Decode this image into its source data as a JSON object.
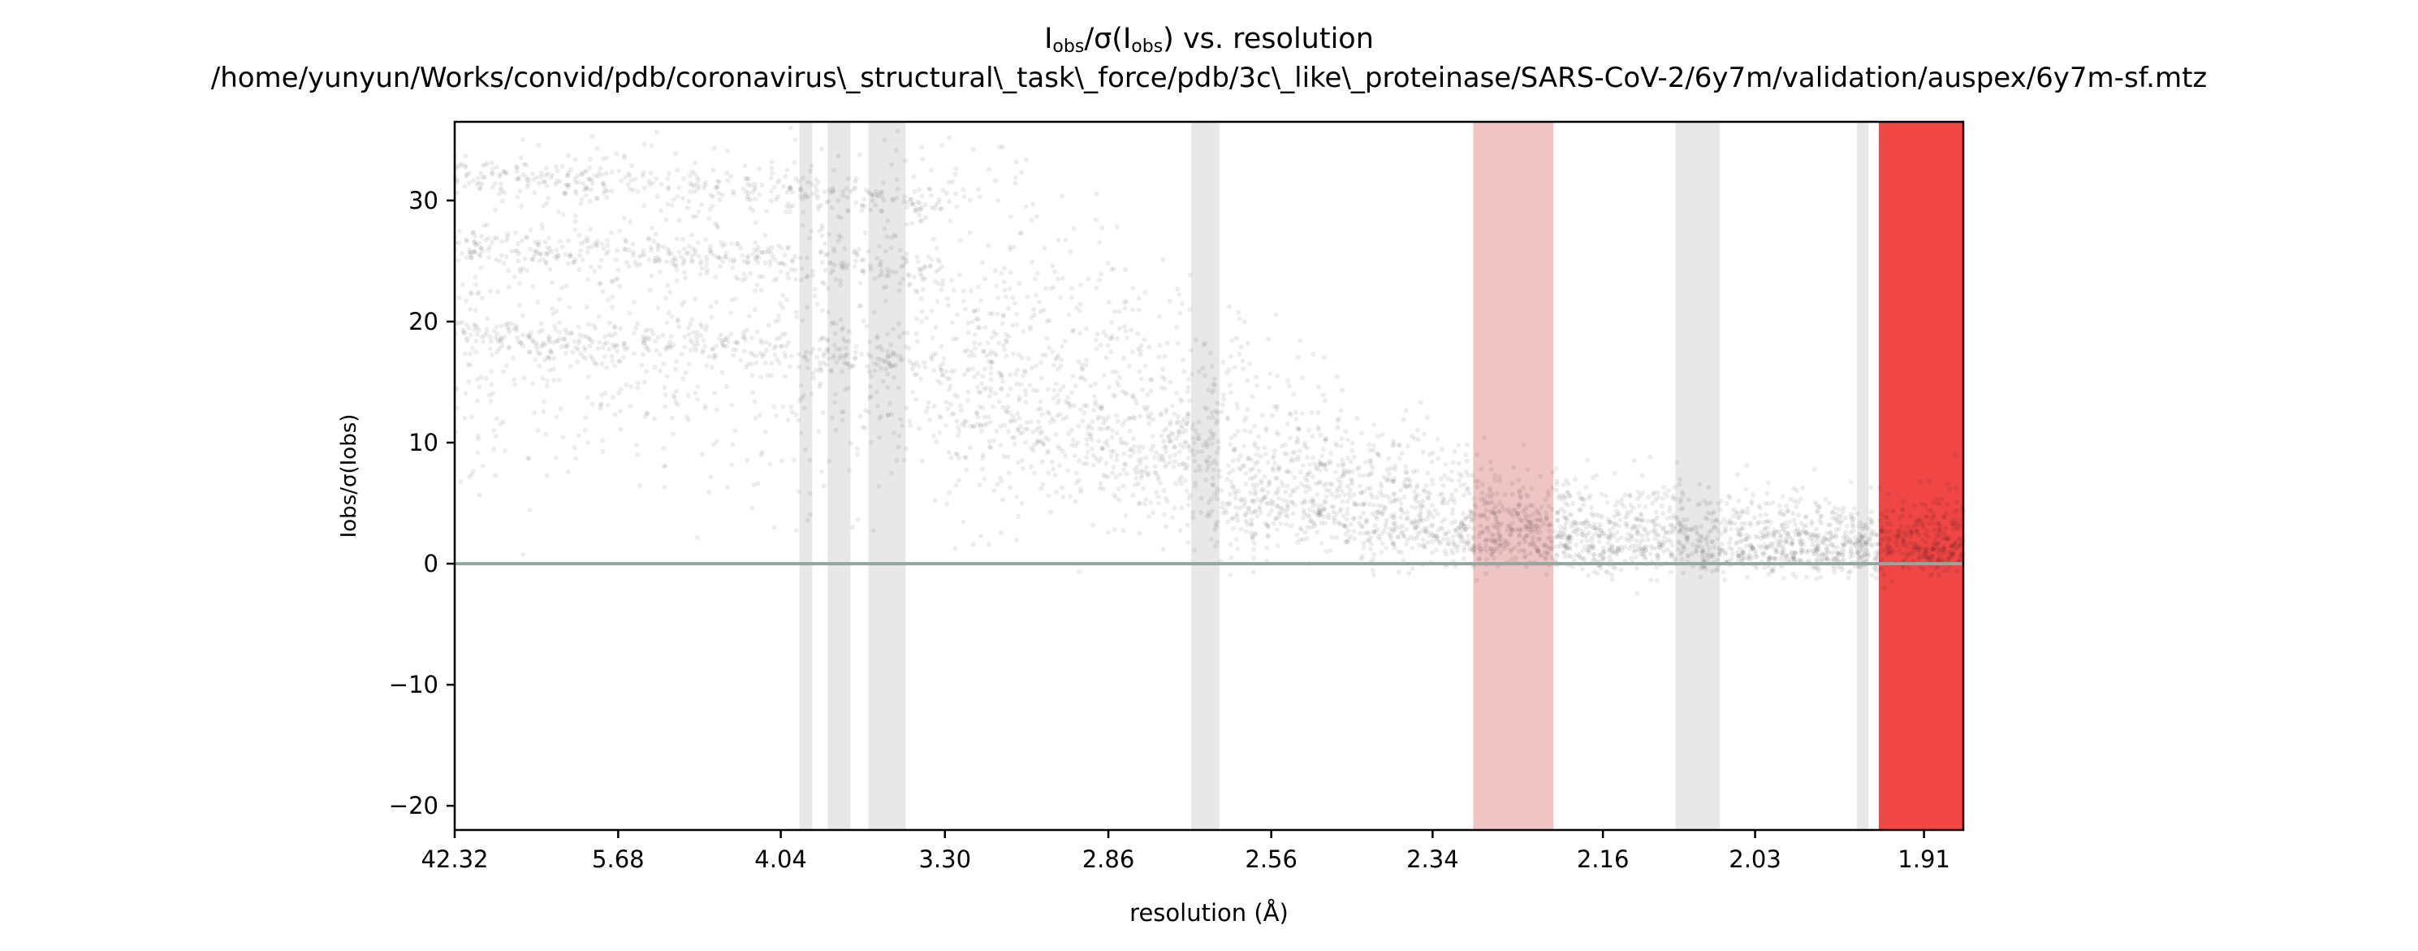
{
  "chart_data": {
    "type": "scatter",
    "title": {
      "main": "I",
      "obs_sub": "obs",
      "slash_sigma": "/σ(I",
      "close_paren": ")",
      "suffix": " vs. resolution"
    },
    "subtitle": "/home/yunyun/Works/convid/pdb/coronavirus\\_structural\\_task\\_force/pdb/3c\\_like\\_proteinase/SARS-CoV-2/6y7m/validation/auspex/6y7m-sf.mtz",
    "xlabel": "resolution (Å)",
    "ylabel": "Iobs/σ(Iobs)",
    "x_axis": {
      "scale": "reciprocal-square (1/d²)",
      "range_resolution_A": [
        42.32,
        1.885
      ],
      "tick_labels": [
        "42.32",
        "5.68",
        "4.04",
        "3.30",
        "2.86",
        "2.56",
        "2.34",
        "2.16",
        "2.03",
        "1.91"
      ]
    },
    "y_axis": {
      "range": [
        -22,
        36.5
      ],
      "ticks": [
        -20,
        -10,
        0,
        10,
        20,
        30
      ],
      "tick_labels": [
        "−20",
        "−10",
        "0",
        "10",
        "20",
        "30"
      ]
    },
    "zero_line_y": 0,
    "ice_ring_bands": [
      {
        "from_A": 3.93,
        "to_A": 3.86,
        "color": "#e8e8e8"
      },
      {
        "from_A": 3.78,
        "to_A": 3.67,
        "color": "#e8e8e8"
      },
      {
        "from_A": 3.59,
        "to_A": 3.44,
        "color": "#e8e8e8"
      },
      {
        "from_A": 2.695,
        "to_A": 2.645,
        "color": "#e8e8e8"
      },
      {
        "from_A": 2.293,
        "to_A": 2.208,
        "color": "#efc4c4"
      },
      {
        "from_A": 2.095,
        "to_A": 2.058,
        "color": "#e8e8e8"
      },
      {
        "from_A": 1.955,
        "to_A": 1.947,
        "color": "#e8e8e8"
      },
      {
        "from_A": 1.94,
        "to_A": 1.885,
        "color": "#f04646"
      }
    ],
    "point_color": "#000000",
    "point_opacity": 0.07,
    "trend_series": [
      {
        "x_A": [
          42.32,
          10.0,
          5.68,
          4.5,
          4.04,
          3.6,
          3.3
        ],
        "y": [
          32.0,
          31.8,
          31.5,
          31.2,
          30.9,
          30.4,
          29.8
        ]
      },
      {
        "x_A": [
          42.32,
          10.0,
          5.68,
          4.5,
          4.04,
          3.6,
          3.3
        ],
        "y": [
          26.0,
          26.0,
          25.8,
          25.5,
          25.0,
          24.5,
          23.8
        ]
      },
      {
        "x_A": [
          42.32,
          10.0,
          5.68,
          4.5,
          4.04,
          3.6,
          3.3
        ],
        "y": [
          18.6,
          18.5,
          18.3,
          18.0,
          17.6,
          17.0,
          16.3
        ]
      },
      {
        "x_A": [
          3.3,
          2.86,
          2.56,
          2.34,
          2.16,
          2.03,
          1.91
        ],
        "y": [
          12.0,
          7.5,
          4.0,
          1.8,
          0.9,
          0.6,
          0.5
        ]
      }
    ],
    "grid": false,
    "legend": "none"
  }
}
